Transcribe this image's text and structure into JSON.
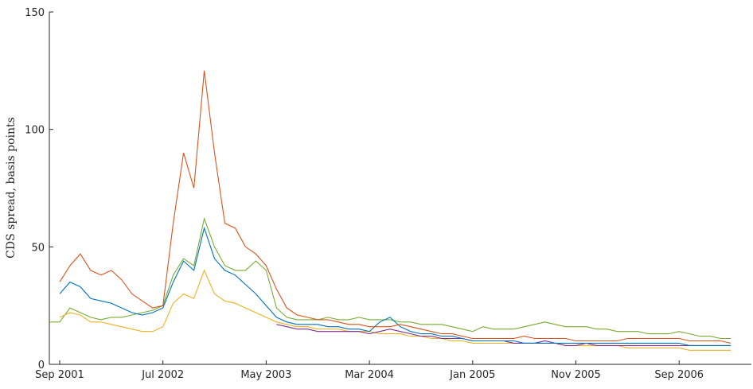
{
  "chart_data": {
    "type": "line",
    "y_label": "CDS spread, basis points",
    "x": [
      "2001-08",
      "2001-09",
      "2001-10",
      "2001-11",
      "2001-12",
      "2002-01",
      "2002-02",
      "2002-03",
      "2002-04",
      "2002-05",
      "2002-06",
      "2002-07",
      "2002-08",
      "2002-09",
      "2002-10",
      "2002-11",
      "2002-12",
      "2003-01",
      "2003-02",
      "2003-03",
      "2003-04",
      "2003-05",
      "2003-06",
      "2003-07",
      "2003-08",
      "2003-09",
      "2003-10",
      "2003-11",
      "2003-12",
      "2004-01",
      "2004-02",
      "2004-03",
      "2004-04",
      "2004-05",
      "2004-06",
      "2004-07",
      "2004-08",
      "2004-09",
      "2004-10",
      "2004-11",
      "2004-12",
      "2005-01",
      "2005-02",
      "2005-03",
      "2005-04",
      "2005-05",
      "2005-06",
      "2005-07",
      "2005-08",
      "2005-09",
      "2005-10",
      "2005-11",
      "2005-12",
      "2006-01",
      "2006-02",
      "2006-03",
      "2006-04",
      "2006-05",
      "2006-06",
      "2006-07",
      "2006-08",
      "2006-09",
      "2006-10",
      "2006-11",
      "2006-12",
      "2007-01",
      "2007-02"
    ],
    "series": [
      {
        "color": "#77ac30",
        "values": [
          18,
          18,
          24,
          22,
          20,
          19,
          20,
          20,
          21,
          22,
          23,
          25,
          38,
          45,
          42,
          62,
          50,
          42,
          40,
          40,
          44,
          40,
          24,
          20,
          19,
          19,
          19,
          20,
          19,
          19,
          20,
          19,
          19,
          19,
          18,
          18,
          17,
          17,
          17,
          16,
          15,
          14,
          16,
          15,
          15,
          15,
          16,
          17,
          18,
          17,
          16,
          16,
          16,
          15,
          15,
          14,
          14,
          14,
          13,
          13,
          13,
          14,
          13,
          12,
          12,
          11,
          11
        ]
      },
      {
        "color": "#edb120",
        "values": [
          null,
          20,
          22,
          21,
          18,
          18,
          17,
          16,
          15,
          14,
          14,
          16,
          26,
          30,
          28,
          40,
          30,
          27,
          26,
          24,
          22,
          20,
          18,
          17,
          16,
          16,
          15,
          15,
          15,
          14,
          14,
          14,
          13,
          13,
          13,
          12,
          12,
          11,
          11,
          10,
          10,
          9,
          9,
          9,
          9,
          9,
          9,
          9,
          9,
          9,
          8,
          8,
          8,
          8,
          8,
          8,
          7,
          7,
          7,
          7,
          7,
          7,
          6,
          6,
          6,
          6,
          6
        ]
      },
      {
        "color": "#7e2f8e",
        "values": [
          null,
          null,
          null,
          null,
          null,
          null,
          null,
          null,
          null,
          null,
          null,
          null,
          null,
          null,
          null,
          null,
          null,
          null,
          null,
          null,
          null,
          null,
          17,
          16,
          15,
          15,
          14,
          14,
          14,
          14,
          14,
          13,
          14,
          15,
          14,
          13,
          12,
          12,
          11,
          11,
          11,
          10,
          10,
          10,
          10,
          9,
          9,
          9,
          10,
          9,
          8,
          8,
          9,
          8,
          8,
          8,
          8,
          8,
          8,
          8,
          8,
          8,
          8,
          8,
          8,
          8,
          8
        ]
      },
      {
        "color": "#0072bd",
        "values": [
          null,
          30,
          35,
          33,
          28,
          27,
          26,
          24,
          22,
          21,
          22,
          24,
          35,
          44,
          40,
          58,
          45,
          40,
          38,
          34,
          30,
          25,
          20,
          18,
          17,
          17,
          17,
          16,
          16,
          15,
          15,
          14,
          18,
          20,
          16,
          14,
          13,
          13,
          12,
          12,
          11,
          10,
          10,
          10,
          10,
          10,
          9,
          9,
          9,
          9,
          9,
          9,
          9,
          9,
          9,
          9,
          9,
          9,
          9,
          9,
          9,
          9,
          8,
          8,
          8,
          8,
          8
        ]
      },
      {
        "color": "#d95319",
        "values": [
          null,
          35,
          42,
          47,
          40,
          38,
          40,
          36,
          30,
          27,
          24,
          25,
          60,
          90,
          75,
          125,
          90,
          60,
          58,
          50,
          47,
          42,
          32,
          24,
          21,
          20,
          19,
          19,
          18,
          17,
          17,
          16,
          16,
          16,
          17,
          16,
          15,
          14,
          13,
          13,
          12,
          11,
          11,
          11,
          11,
          11,
          12,
          11,
          11,
          11,
          11,
          10,
          10,
          10,
          10,
          10,
          11,
          11,
          11,
          11,
          11,
          11,
          10,
          10,
          10,
          10,
          9
        ]
      }
    ],
    "xlim": [
      "2001-08",
      "2007-04"
    ],
    "xticks": [
      {
        "value": "2001-09",
        "label": "Sep 2001"
      },
      {
        "value": "2002-07",
        "label": "Jul 2002"
      },
      {
        "value": "2003-05",
        "label": "May 2003"
      },
      {
        "value": "2004-03",
        "label": "Mar 2004"
      },
      {
        "value": "2005-01",
        "label": "Jan 2005"
      },
      {
        "value": "2005-11",
        "label": "Nov 2005"
      },
      {
        "value": "2006-09",
        "label": "Sep 2006"
      }
    ],
    "ylim": [
      0,
      150
    ],
    "yticks": [
      0,
      50,
      100,
      150
    ]
  }
}
